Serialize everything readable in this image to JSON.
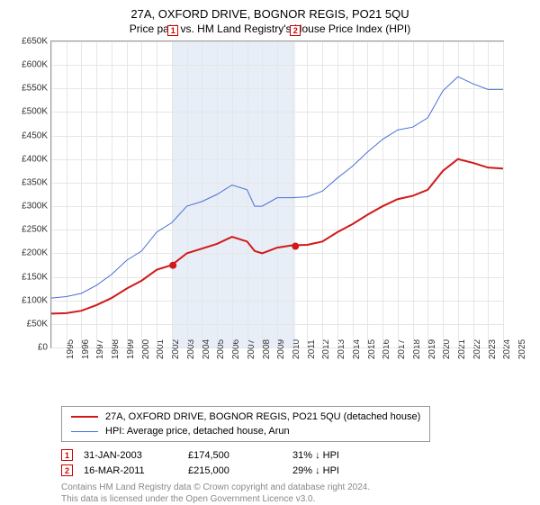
{
  "title_main": "27A, OXFORD DRIVE, BOGNOR REGIS, PO21 5QU",
  "title_sub": "Price paid vs. HM Land Registry's House Price Index (HPI)",
  "chart": {
    "type": "line",
    "background_color": "#ffffff",
    "grid_color": "#e6e6e6",
    "border_color": "#999999",
    "band_color": "#e8eef7",
    "y": {
      "min": 0,
      "max": 650,
      "step": 50,
      "prefix": "£",
      "suffix": "K",
      "fontsize": 10,
      "color": "#333333"
    },
    "x": {
      "min": 1995,
      "max": 2025,
      "step": 1,
      "fontsize": 10,
      "color": "#333333"
    },
    "band": {
      "from_year": 2003.08,
      "to_year": 2011.21
    },
    "series": [
      {
        "name": "27A, OXFORD DRIVE, BOGNOR REGIS, PO21 5QU (detached house)",
        "color": "#d11919",
        "width": 2,
        "points": [
          [
            1995,
            72
          ],
          [
            1996,
            73
          ],
          [
            1997,
            78
          ],
          [
            1998,
            90
          ],
          [
            1999,
            105
          ],
          [
            2000,
            125
          ],
          [
            2001,
            142
          ],
          [
            2002,
            165
          ],
          [
            2003,
            175
          ],
          [
            2004,
            200
          ],
          [
            2005,
            210
          ],
          [
            2006,
            220
          ],
          [
            2007,
            235
          ],
          [
            2008,
            225
          ],
          [
            2008.5,
            205
          ],
          [
            2009,
            200
          ],
          [
            2010,
            212
          ],
          [
            2011,
            217
          ],
          [
            2012,
            218
          ],
          [
            2013,
            225
          ],
          [
            2014,
            245
          ],
          [
            2015,
            262
          ],
          [
            2016,
            282
          ],
          [
            2017,
            300
          ],
          [
            2018,
            315
          ],
          [
            2019,
            322
          ],
          [
            2020,
            335
          ],
          [
            2021,
            375
          ],
          [
            2022,
            400
          ],
          [
            2023,
            392
          ],
          [
            2024,
            382
          ],
          [
            2025,
            380
          ]
        ]
      },
      {
        "name": "HPI: Average price, detached house, Arun",
        "color": "#4a6fd6",
        "width": 1,
        "points": [
          [
            1995,
            105
          ],
          [
            1996,
            108
          ],
          [
            1997,
            115
          ],
          [
            1998,
            132
          ],
          [
            1999,
            155
          ],
          [
            2000,
            185
          ],
          [
            2001,
            205
          ],
          [
            2002,
            245
          ],
          [
            2003,
            265
          ],
          [
            2004,
            300
          ],
          [
            2005,
            310
          ],
          [
            2006,
            325
          ],
          [
            2007,
            345
          ],
          [
            2008,
            335
          ],
          [
            2008.5,
            300
          ],
          [
            2009,
            300
          ],
          [
            2010,
            318
          ],
          [
            2011,
            318
          ],
          [
            2012,
            320
          ],
          [
            2013,
            332
          ],
          [
            2014,
            360
          ],
          [
            2015,
            385
          ],
          [
            2016,
            415
          ],
          [
            2017,
            442
          ],
          [
            2018,
            462
          ],
          [
            2019,
            468
          ],
          [
            2020,
            488
          ],
          [
            2021,
            545
          ],
          [
            2022,
            575
          ],
          [
            2023,
            560
          ],
          [
            2024,
            548
          ],
          [
            2025,
            548
          ]
        ]
      }
    ],
    "markers": [
      {
        "n": "1",
        "year": 2003.08,
        "value": 174.5,
        "color": "#cc0000"
      },
      {
        "n": "2",
        "year": 2011.21,
        "value": 215.0,
        "color": "#cc0000"
      }
    ]
  },
  "legend": [
    {
      "label": "27A, OXFORD DRIVE, BOGNOR REGIS, PO21 5QU (detached house)",
      "color": "#d11919",
      "width": 2
    },
    {
      "label": "HPI: Average price, detached house, Arun",
      "color": "#4a6fd6",
      "width": 1
    }
  ],
  "events": [
    {
      "n": "1",
      "date": "31-JAN-2003",
      "price": "£174,500",
      "delta": "31% ↓ HPI"
    },
    {
      "n": "2",
      "date": "16-MAR-2011",
      "price": "£215,000",
      "delta": "29% ↓ HPI"
    }
  ],
  "footer_l1": "Contains HM Land Registry data © Crown copyright and database right 2024.",
  "footer_l2": "This data is licensed under the Open Government Licence v3.0."
}
